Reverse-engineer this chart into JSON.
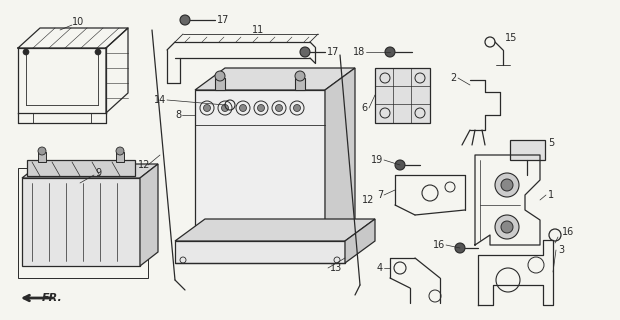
{
  "background_color": "#f5f5f0",
  "line_color": "#2a2a2a",
  "lw_main": 0.9,
  "lw_thin": 0.6,
  "font_size": 7.0
}
